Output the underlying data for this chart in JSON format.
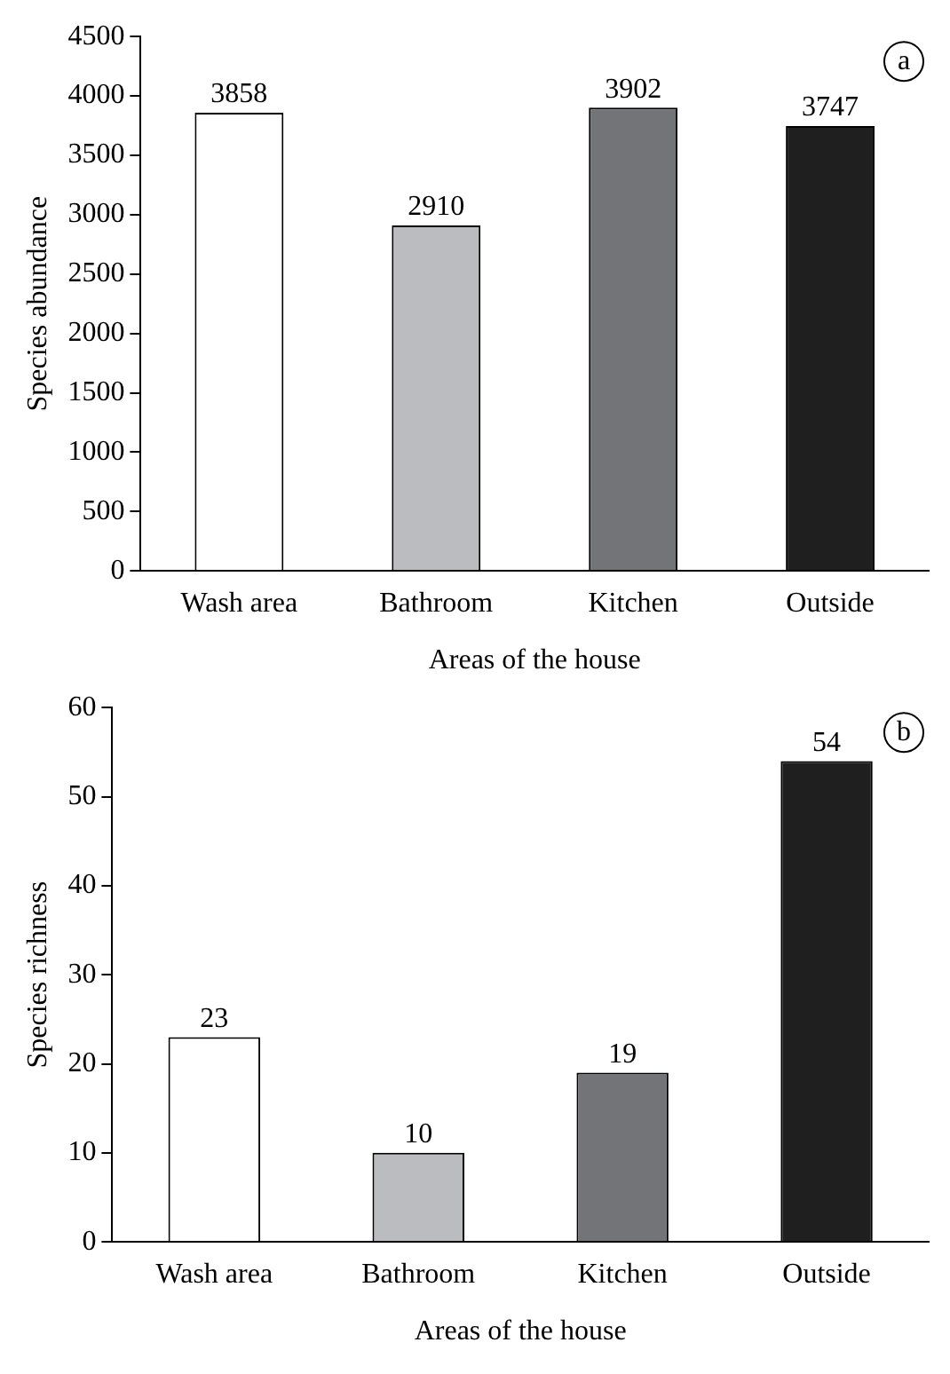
{
  "chart_data": [
    {
      "type": "bar",
      "categories": [
        "Wash area",
        "Bathroom",
        "Kitchen",
        "Outside"
      ],
      "values": [
        3858,
        2910,
        3902,
        3747
      ],
      "colors": [
        "#ffffff",
        "#bbbcc0",
        "#737478",
        "#1f1f1f"
      ],
      "ylabel": "Species abundance",
      "xlabel": "Areas of the house",
      "ylim": [
        0,
        4500
      ],
      "yticks": [
        0,
        500,
        1000,
        1500,
        2000,
        2500,
        3000,
        3500,
        4000,
        4500
      ],
      "data_labels": true,
      "annotations": [
        "a"
      ]
    },
    {
      "type": "bar",
      "categories": [
        "Wash area",
        "Bathroom",
        "Kitchen",
        "Outside"
      ],
      "values": [
        23,
        10,
        19,
        54
      ],
      "colors": [
        "#ffffff",
        "#bbbcc0",
        "#737478",
        "#1f1f1f"
      ],
      "ylabel": "Species richness",
      "xlabel": "Areas of the house",
      "ylim": [
        0,
        60
      ],
      "yticks": [
        0,
        10,
        20,
        30,
        40,
        50,
        60
      ],
      "data_labels": true,
      "annotations": [
        "b"
      ]
    }
  ]
}
